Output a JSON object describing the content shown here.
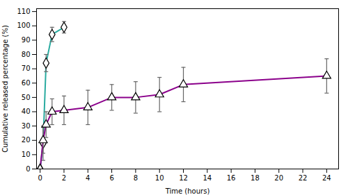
{
  "chart_data": {
    "type": "line",
    "xlabel": "Time (hours)",
    "ylabel": "Cumulative released percentage (%)",
    "xlim": [
      -0.3,
      25
    ],
    "ylim": [
      0,
      112
    ],
    "xticks": [
      0,
      2,
      4,
      6,
      8,
      10,
      12,
      14,
      16,
      18,
      20,
      22,
      24
    ],
    "yticks": [
      0,
      10,
      20,
      30,
      40,
      50,
      60,
      70,
      80,
      90,
      100,
      110
    ],
    "grid": false,
    "series": [
      {
        "color": "#2aaba0",
        "marker": "diamond",
        "x": [
          0,
          0.25,
          0.5,
          1.0,
          2.0
        ],
        "values": [
          0,
          18,
          74,
          94,
          99
        ],
        "error": [
          0,
          12,
          6,
          5,
          4
        ]
      },
      {
        "color": "#8b008b",
        "marker": "triangle",
        "x": [
          0,
          0.25,
          0.5,
          1.0,
          2.0,
          4.0,
          6.0,
          8.0,
          10.0,
          12.0,
          24.0
        ],
        "values": [
          0,
          20,
          31,
          40,
          41,
          43,
          50,
          50,
          52,
          59,
          65
        ],
        "error": [
          0,
          9,
          9,
          9,
          10,
          12,
          9,
          11,
          12,
          12,
          12
        ]
      }
    ]
  }
}
